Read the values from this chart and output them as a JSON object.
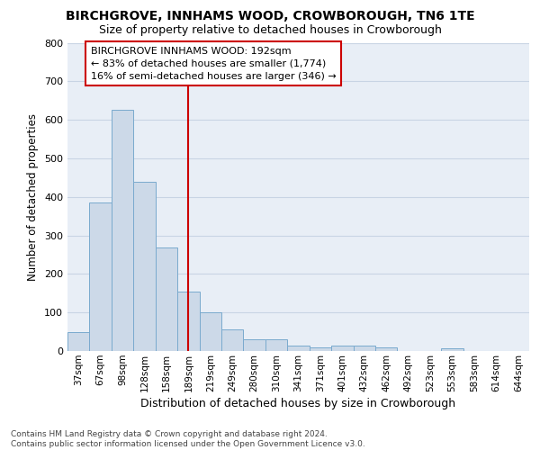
{
  "title1": "BIRCHGROVE, INNHAMS WOOD, CROWBOROUGH, TN6 1TE",
  "title2": "Size of property relative to detached houses in Crowborough",
  "xlabel": "Distribution of detached houses by size in Crowborough",
  "ylabel": "Number of detached properties",
  "categories": [
    "37sqm",
    "67sqm",
    "98sqm",
    "128sqm",
    "158sqm",
    "189sqm",
    "219sqm",
    "249sqm",
    "280sqm",
    "310sqm",
    "341sqm",
    "371sqm",
    "401sqm",
    "432sqm",
    "462sqm",
    "492sqm",
    "523sqm",
    "553sqm",
    "583sqm",
    "614sqm",
    "644sqm"
  ],
  "values": [
    50,
    385,
    625,
    440,
    268,
    155,
    100,
    55,
    30,
    30,
    15,
    10,
    13,
    13,
    10,
    0,
    0,
    8,
    0,
    0,
    0
  ],
  "bar_color": "#ccd9e8",
  "bar_edge_color": "#7aaace",
  "grid_color": "#c8d4e4",
  "background_color": "#e8eef6",
  "vline_x": 5.0,
  "vline_color": "#cc0000",
  "annotation_text": "BIRCHGROVE INNHAMS WOOD: 192sqm\n← 83% of detached houses are smaller (1,774)\n16% of semi-detached houses are larger (346) →",
  "annotation_box_edge": "#cc0000",
  "footnote": "Contains HM Land Registry data © Crown copyright and database right 2024.\nContains public sector information licensed under the Open Government Licence v3.0.",
  "ylim_max": 800,
  "yticks": [
    0,
    100,
    200,
    300,
    400,
    500,
    600,
    700,
    800
  ],
  "title1_fontsize": 10,
  "title2_fontsize": 9,
  "xlabel_fontsize": 9,
  "ylabel_fontsize": 8.5,
  "tick_fontsize": 8,
  "xtick_fontsize": 7.5,
  "annot_fontsize": 8,
  "footnote_fontsize": 6.5
}
